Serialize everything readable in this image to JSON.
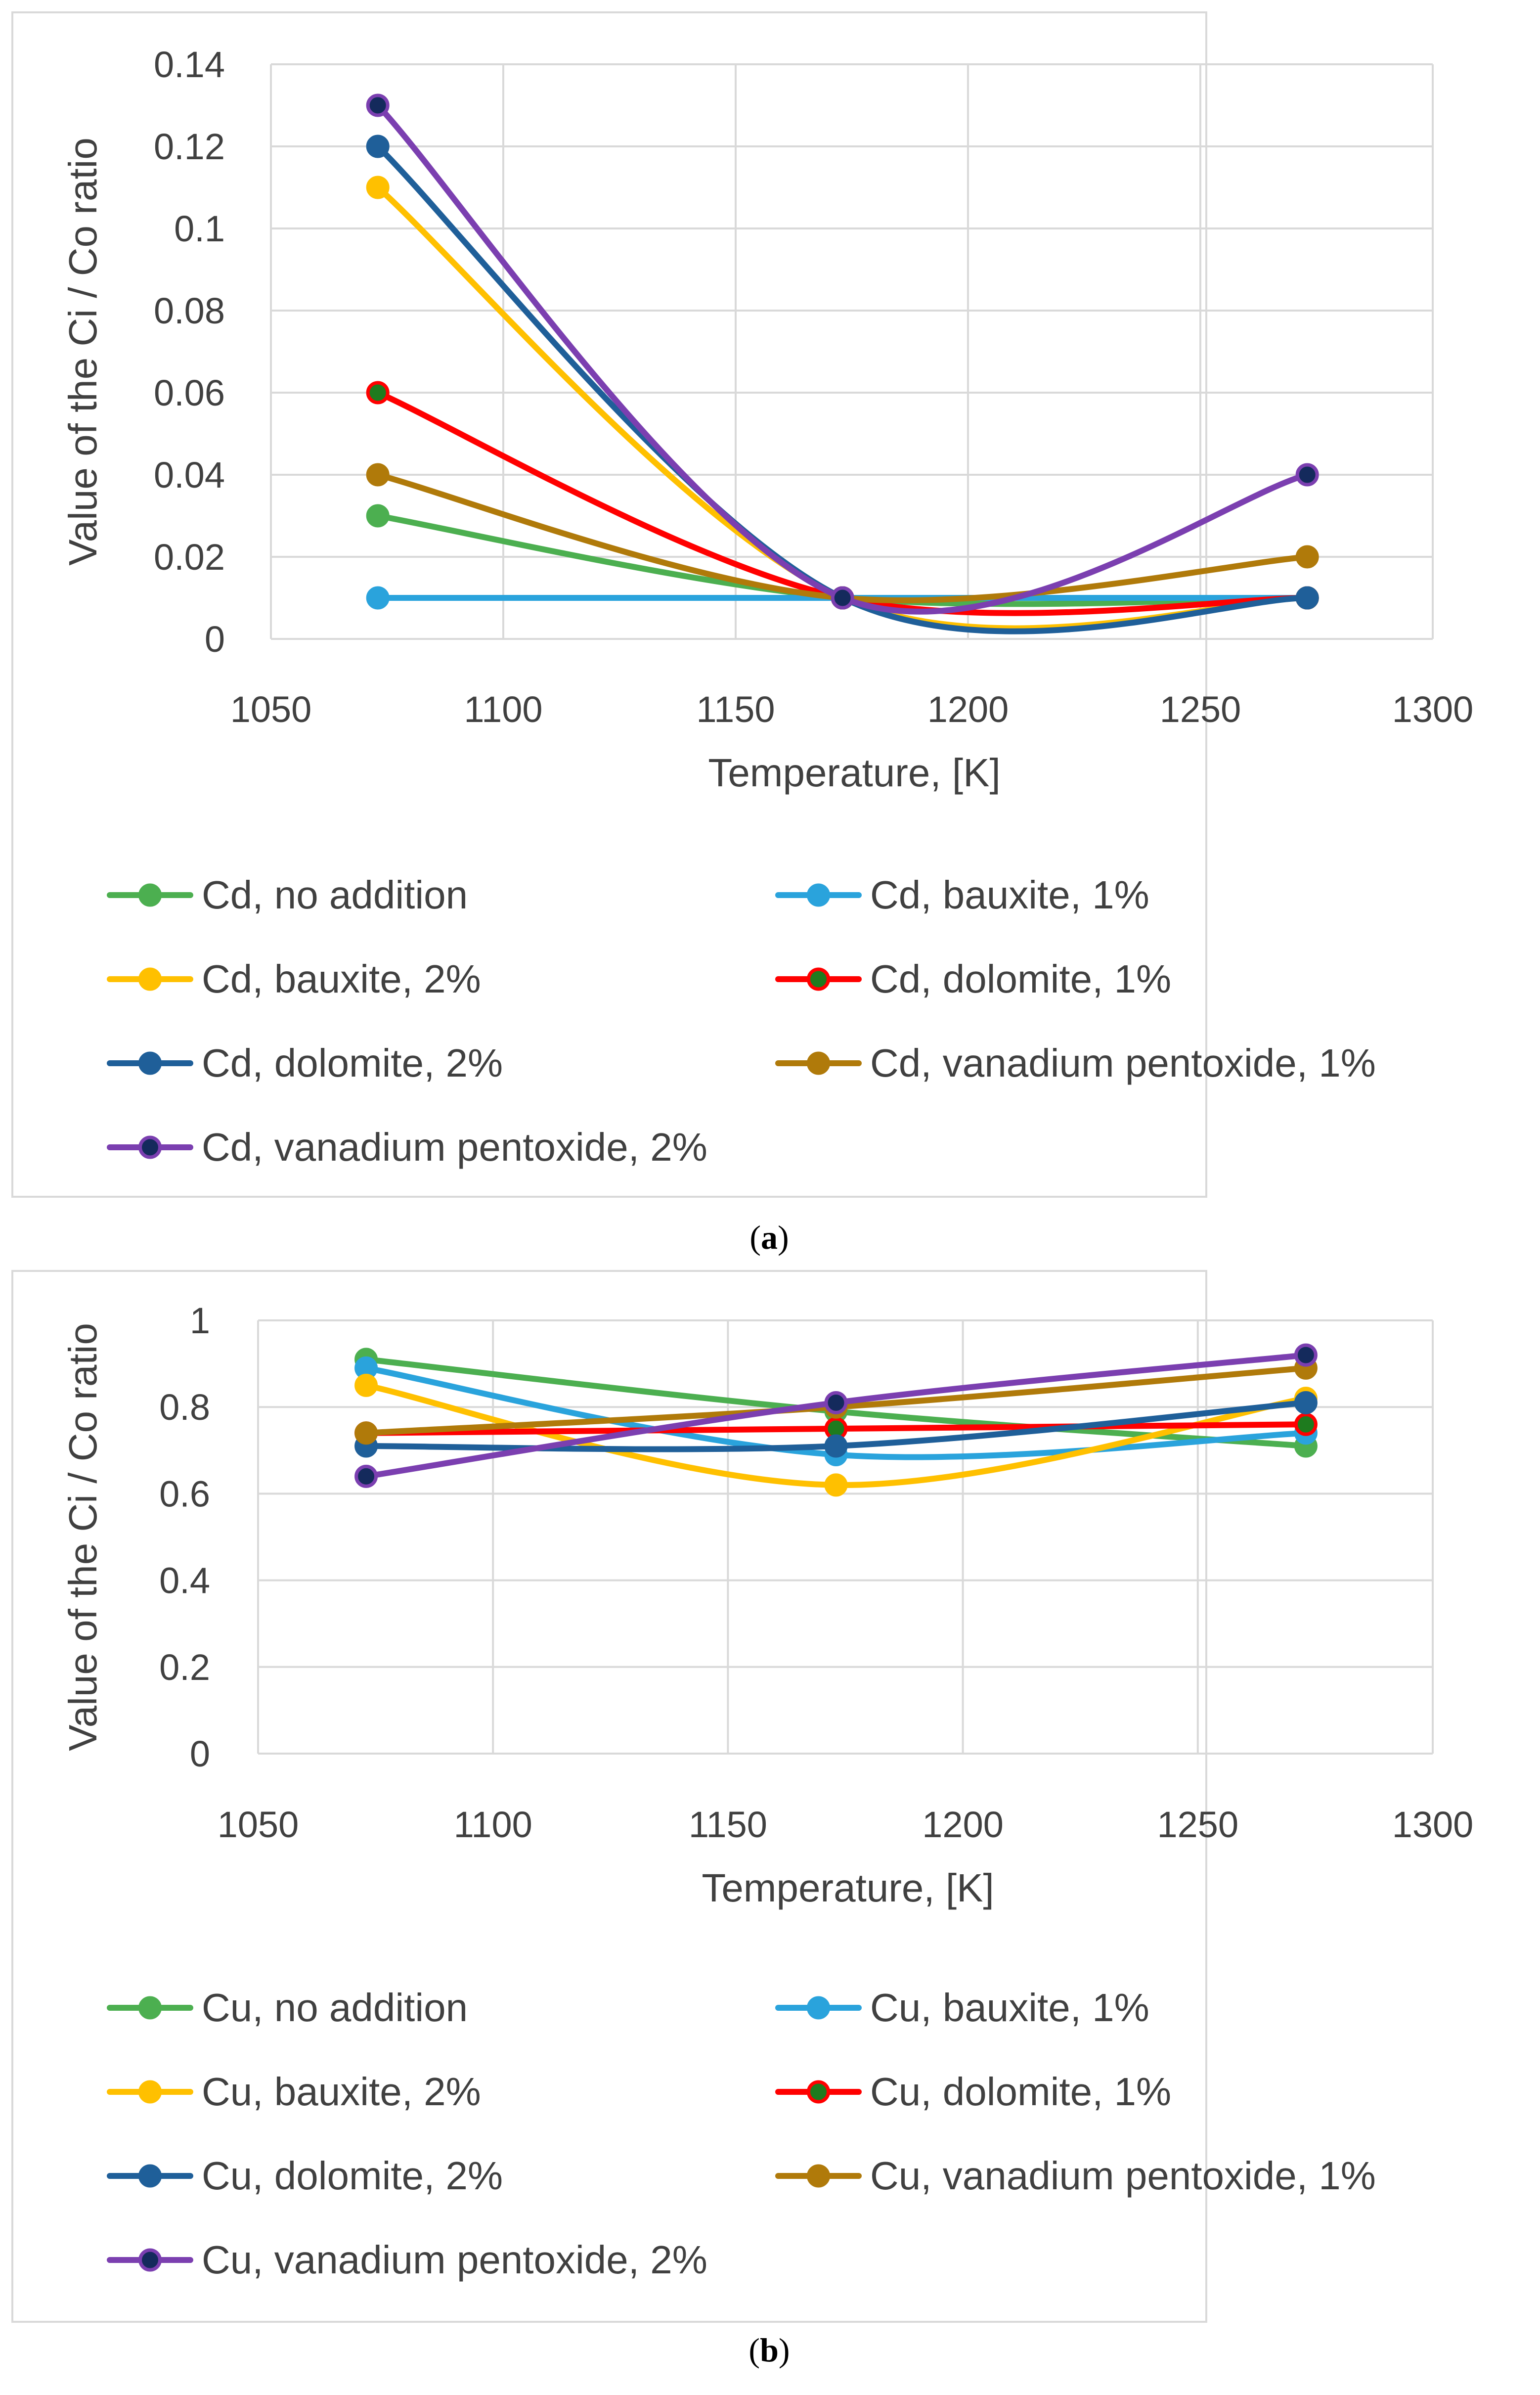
{
  "chart_data": [
    {
      "type": "line",
      "panel_label": "(a)",
      "panel_letter": "a",
      "title": "",
      "xlabel": "Temperature, [K]",
      "ylabel": "Value of the Ci / Co ratio",
      "xlim": [
        1050,
        1300
      ],
      "ylim": [
        0,
        0.14
      ],
      "xticks": [
        "1050",
        "1100",
        "1150",
        "1200",
        "1250",
        "1300"
      ],
      "yticks": [
        "0",
        "0.02",
        "0.04",
        "0.06",
        "0.08",
        "0.1",
        "0.12",
        "0.14"
      ],
      "x": [
        1073,
        1173,
        1273
      ],
      "smooth": true,
      "grid": true,
      "legend_position": "bottom",
      "series": [
        {
          "name": "Cd, no addition",
          "color": "#4caf50",
          "marker_color": "#4caf50",
          "values": [
            0.03,
            0.01,
            0.01
          ]
        },
        {
          "name": "Cd, bauxite, 1%",
          "color": "#2aa3dc",
          "marker_color": "#2aa3dc",
          "values": [
            0.01,
            0.01,
            0.01
          ]
        },
        {
          "name": "Cd, bauxite, 2%",
          "color": "#ffc000",
          "marker_color": "#ffc000",
          "values": [
            0.11,
            0.01,
            0.01
          ]
        },
        {
          "name": "Cd, dolomite, 1%",
          "color": "#ff0000",
          "marker_color": "#1e7b1e",
          "values": [
            0.06,
            0.01,
            0.01
          ]
        },
        {
          "name": "Cd, dolomite, 2%",
          "color": "#1f5f99",
          "marker_color": "#1f5f99",
          "values": [
            0.12,
            0.01,
            0.01
          ]
        },
        {
          "name": "Cd, vanadium pentoxide, 1%",
          "color": "#b07a0a",
          "marker_color": "#b07a0a",
          "values": [
            0.04,
            0.01,
            0.02
          ]
        },
        {
          "name": "Cd, vanadium pentoxide, 2%",
          "color": "#7b3fb0",
          "marker_color": "#142a5c",
          "values": [
            0.13,
            0.01,
            0.04
          ]
        }
      ]
    },
    {
      "type": "line",
      "panel_label": "(b)",
      "panel_letter": "b",
      "title": "",
      "xlabel": "Temperature, [K]",
      "ylabel": "Value of the Ci / Co ratio",
      "xlim": [
        1050,
        1300
      ],
      "ylim": [
        0,
        1
      ],
      "xticks": [
        "1050",
        "1100",
        "1150",
        "1200",
        "1250",
        "1300"
      ],
      "yticks": [
        "0",
        "0.2",
        "0.4",
        "0.6",
        "0.8",
        "1"
      ],
      "x": [
        1073,
        1173,
        1273
      ],
      "smooth": true,
      "grid": true,
      "legend_position": "bottom",
      "series": [
        {
          "name": "Cu, no addition",
          "color": "#4caf50",
          "marker_color": "#4caf50",
          "values": [
            0.91,
            0.79,
            0.71
          ]
        },
        {
          "name": "Cu, bauxite, 1%",
          "color": "#2aa3dc",
          "marker_color": "#2aa3dc",
          "values": [
            0.89,
            0.69,
            0.74
          ]
        },
        {
          "name": "Cu, bauxite, 2%",
          "color": "#ffc000",
          "marker_color": "#ffc000",
          "values": [
            0.85,
            0.62,
            0.82
          ]
        },
        {
          "name": "Cu, dolomite, 1%",
          "color": "#ff0000",
          "marker_color": "#1e7b1e",
          "values": [
            0.74,
            0.75,
            0.76
          ]
        },
        {
          "name": "Cu, dolomite, 2%",
          "color": "#1f5f99",
          "marker_color": "#1f5f99",
          "values": [
            0.71,
            0.71,
            0.81
          ]
        },
        {
          "name": "Cu, vanadium pentoxide, 1%",
          "color": "#b07a0a",
          "marker_color": "#b07a0a",
          "values": [
            0.74,
            0.8,
            0.89
          ]
        },
        {
          "name": "Cu, vanadium pentoxide, 2%",
          "color": "#7b3fb0",
          "marker_color": "#142a5c",
          "values": [
            0.64,
            0.81,
            0.92
          ]
        }
      ]
    }
  ]
}
